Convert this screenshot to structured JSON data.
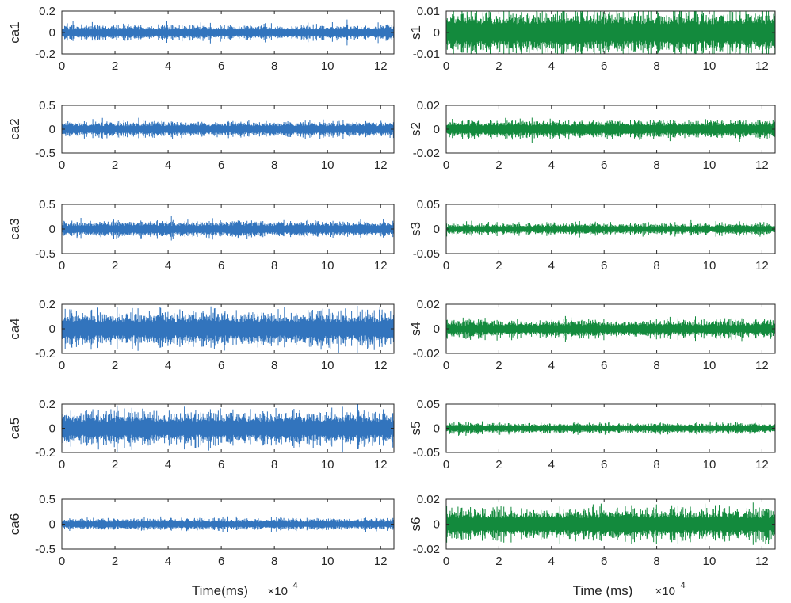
{
  "chart_data": [
    {
      "type": "line",
      "panel": "ca1",
      "ylabel": "ca1",
      "color": "#3274bd",
      "xlim": [
        0,
        12.5
      ],
      "ylim": [
        -0.2,
        0.2
      ],
      "xticks": [
        0,
        2,
        4,
        6,
        8,
        10,
        12
      ],
      "xtick_labels": [
        "0",
        "2",
        "4",
        "6",
        "8",
        "10",
        "12"
      ],
      "yticks": [
        -0.2,
        0,
        0.2
      ],
      "ytick_labels": [
        "-0.2",
        "0",
        "0.2"
      ],
      "amplitude": 0.06,
      "spike": 0.09,
      "xlabel": ""
    },
    {
      "type": "line",
      "panel": "ca2",
      "ylabel": "ca2",
      "color": "#3274bd",
      "xlim": [
        0,
        12.5
      ],
      "ylim": [
        -0.5,
        0.5
      ],
      "xticks": [
        0,
        2,
        4,
        6,
        8,
        10,
        12
      ],
      "xtick_labels": [
        "0",
        "2",
        "4",
        "6",
        "8",
        "10",
        "12"
      ],
      "yticks": [
        -0.5,
        0,
        0.5
      ],
      "ytick_labels": [
        "-0.5",
        "0",
        "0.5"
      ],
      "amplitude": 0.14,
      "spike": 0.2,
      "xlabel": ""
    },
    {
      "type": "line",
      "panel": "ca3",
      "ylabel": "ca3",
      "color": "#3274bd",
      "xlim": [
        0,
        12.5
      ],
      "ylim": [
        -0.5,
        0.5
      ],
      "xticks": [
        0,
        2,
        4,
        6,
        8,
        10,
        12
      ],
      "xtick_labels": [
        "0",
        "2",
        "4",
        "6",
        "8",
        "10",
        "12"
      ],
      "yticks": [
        -0.5,
        0,
        0.5
      ],
      "ytick_labels": [
        "-0.5",
        "0",
        "0.5"
      ],
      "amplitude": 0.14,
      "spike": 0.18,
      "xlabel": ""
    },
    {
      "type": "line",
      "panel": "ca4",
      "ylabel": "ca4",
      "color": "#3274bd",
      "xlim": [
        0,
        12.5
      ],
      "ylim": [
        -0.2,
        0.2
      ],
      "xticks": [
        0,
        2,
        4,
        6,
        8,
        10,
        12
      ],
      "xtick_labels": [
        "0",
        "2",
        "4",
        "6",
        "8",
        "10",
        "12"
      ],
      "yticks": [
        -0.2,
        0,
        0.2
      ],
      "ytick_labels": [
        "-0.2",
        "0",
        "0.2"
      ],
      "amplitude": 0.12,
      "spike": 0.19,
      "xlabel": ""
    },
    {
      "type": "line",
      "panel": "ca5",
      "ylabel": "ca5",
      "color": "#3274bd",
      "xlim": [
        0,
        12.5
      ],
      "ylim": [
        -0.2,
        0.2
      ],
      "xticks": [
        0,
        2,
        4,
        6,
        8,
        10,
        12
      ],
      "xtick_labels": [
        "0",
        "2",
        "4",
        "6",
        "8",
        "10",
        "12"
      ],
      "yticks": [
        -0.2,
        0,
        0.2
      ],
      "ytick_labels": [
        "-0.2",
        "0",
        "0.2"
      ],
      "amplitude": 0.12,
      "spike": 0.19,
      "xlabel": ""
    },
    {
      "type": "line",
      "panel": "ca6",
      "ylabel": "ca6",
      "color": "#3274bd",
      "xlim": [
        0,
        12.5
      ],
      "ylim": [
        -0.5,
        0.5
      ],
      "xticks": [
        0,
        2,
        4,
        6,
        8,
        10,
        12
      ],
      "xtick_labels": [
        "0",
        "2",
        "4",
        "6",
        "8",
        "10",
        "12"
      ],
      "yticks": [
        -0.5,
        0,
        0.5
      ],
      "ytick_labels": [
        "-0.5",
        "0",
        "0.5"
      ],
      "amplitude": 0.1,
      "spike": 0.16,
      "xlabel": "Time(ms)",
      "xscale_base": "×10",
      "xscale_exp": "4"
    },
    {
      "type": "line",
      "panel": "s1",
      "ylabel": "s1",
      "color": "#138a3d",
      "xlim": [
        0,
        12.5
      ],
      "ylim": [
        -0.01,
        0.01
      ],
      "xticks": [
        0,
        2,
        4,
        6,
        8,
        10,
        12
      ],
      "xtick_labels": [
        "0",
        "2",
        "4",
        "6",
        "8",
        "10",
        "12"
      ],
      "yticks": [
        -0.01,
        0,
        0.01
      ],
      "ytick_labels": [
        "-0.01",
        "0",
        "0.01"
      ],
      "amplitude": 0.0088,
      "spike": 0.0095,
      "xlabel": ""
    },
    {
      "type": "line",
      "panel": "s2",
      "ylabel": "s2",
      "color": "#138a3d",
      "xlim": [
        0,
        12.5
      ],
      "ylim": [
        -0.02,
        0.02
      ],
      "xticks": [
        0,
        2,
        4,
        6,
        8,
        10,
        12
      ],
      "xtick_labels": [
        "0",
        "2",
        "4",
        "6",
        "8",
        "10",
        "12"
      ],
      "yticks": [
        -0.02,
        0,
        0.02
      ],
      "ytick_labels": [
        "-0.02",
        "0",
        "0.02"
      ],
      "amplitude": 0.0065,
      "spike": 0.009,
      "xlabel": ""
    },
    {
      "type": "line",
      "panel": "s3",
      "ylabel": "s3",
      "color": "#138a3d",
      "xlim": [
        0,
        12.5
      ],
      "ylim": [
        -0.05,
        0.05
      ],
      "xticks": [
        0,
        2,
        4,
        6,
        8,
        10,
        12
      ],
      "xtick_labels": [
        "0",
        "2",
        "4",
        "6",
        "8",
        "10",
        "12"
      ],
      "yticks": [
        -0.05,
        0,
        0.05
      ],
      "ytick_labels": [
        "-0.05",
        "0",
        "0.05"
      ],
      "amplitude": 0.01,
      "spike": 0.015,
      "xlabel": ""
    },
    {
      "type": "line",
      "panel": "s4",
      "ylabel": "s4",
      "color": "#138a3d",
      "xlim": [
        0,
        12.5
      ],
      "ylim": [
        -0.02,
        0.02
      ],
      "xticks": [
        0,
        2,
        4,
        6,
        8,
        10,
        12
      ],
      "xtick_labels": [
        "0",
        "2",
        "4",
        "6",
        "8",
        "10",
        "12"
      ],
      "yticks": [
        -0.02,
        0,
        0.02
      ],
      "ytick_labels": [
        "-0.02",
        "0",
        "0.02"
      ],
      "amplitude": 0.006,
      "spike": 0.012,
      "xlabel": ""
    },
    {
      "type": "line",
      "panel": "s5",
      "ylabel": "s5",
      "color": "#138a3d",
      "xlim": [
        0,
        12.5
      ],
      "ylim": [
        -0.05,
        0.05
      ],
      "xticks": [
        0,
        2,
        4,
        6,
        8,
        10,
        12
      ],
      "xtick_labels": [
        "0",
        "2",
        "4",
        "6",
        "8",
        "10",
        "12"
      ],
      "yticks": [
        -0.05,
        0,
        0.05
      ],
      "ytick_labels": [
        "-0.05",
        "0",
        "0.05"
      ],
      "amplitude": 0.009,
      "spike": 0.015,
      "xlabel": ""
    },
    {
      "type": "line",
      "panel": "s6",
      "ylabel": "s6",
      "color": "#138a3d",
      "xlim": [
        0,
        12.5
      ],
      "ylim": [
        -0.02,
        0.02
      ],
      "xticks": [
        0,
        2,
        4,
        6,
        8,
        10,
        12
      ],
      "xtick_labels": [
        "0",
        "2",
        "4",
        "6",
        "8",
        "10",
        "12"
      ],
      "yticks": [
        -0.02,
        0,
        0.02
      ],
      "ytick_labels": [
        "-0.02",
        "0",
        "0.02"
      ],
      "amplitude": 0.011,
      "spike": 0.018,
      "xlabel": "Time (ms)",
      "xscale_base": "×10",
      "xscale_exp": "4"
    }
  ]
}
